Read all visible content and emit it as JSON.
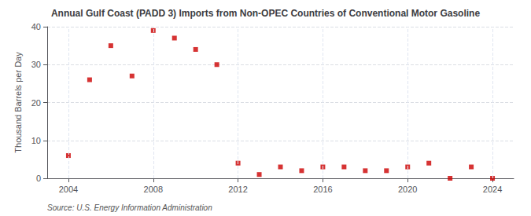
{
  "chart_data": {
    "type": "scatter",
    "title": "Annual Gulf Coast (PADD 3) Imports from Non-OPEC Countries of Conventional Motor Gasoline",
    "ylabel": "Thousand Barrels per Day",
    "annotation": "Source: U.S. Energy Information Administration",
    "x": [
      2004,
      2005,
      2006,
      2007,
      2008,
      2009,
      2010,
      2011,
      2012,
      2013,
      2014,
      2015,
      2016,
      2017,
      2018,
      2019,
      2020,
      2021,
      2022,
      2023,
      2024
    ],
    "values": [
      6,
      26,
      35,
      27,
      39,
      37,
      34,
      30,
      4,
      1,
      3,
      2,
      3,
      3,
      2,
      2,
      3,
      4,
      0,
      3,
      0
    ],
    "color": "#cc0000",
    "marker": "square",
    "xlim": [
      2003,
      2025
    ],
    "xticks": [
      2004,
      2008,
      2012,
      2016,
      2020,
      2024
    ],
    "ylim": [
      0,
      40
    ],
    "yticks": [
      0,
      10,
      20,
      30,
      40
    ],
    "grid": true
  }
}
